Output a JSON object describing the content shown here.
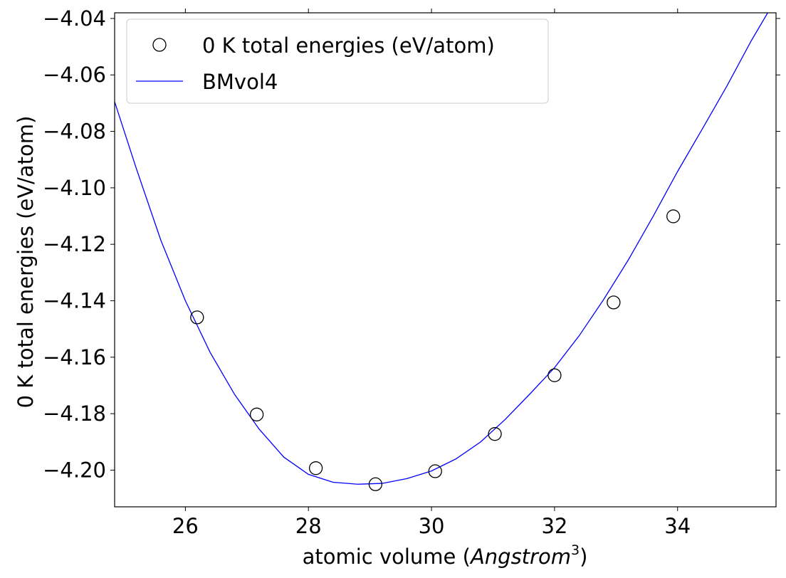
{
  "chart_data": {
    "type": "scatter",
    "xlabel_prefix": "atomic volume (",
    "xlabel_unit": "Angstrom",
    "xlabel_exp": "3",
    "xlabel_suffix": ")",
    "ylabel": "0 K total energies (eV/atom)",
    "xlim": [
      24.85,
      35.6
    ],
    "ylim": [
      -4.213,
      -4.038
    ],
    "xticks": [
      26,
      28,
      30,
      32,
      34
    ],
    "xtick_labels": [
      "26",
      "28",
      "30",
      "32",
      "34"
    ],
    "yticks": [
      -4.2,
      -4.18,
      -4.16,
      -4.14,
      -4.12,
      -4.1,
      -4.08,
      -4.06,
      -4.04
    ],
    "ytick_labels": [
      "−4.20",
      "−4.18",
      "−4.16",
      "−4.14",
      "−4.12",
      "−4.10",
      "−4.08",
      "−4.06",
      "−4.04"
    ],
    "grid": false,
    "legend_position": "top-left",
    "series": [
      {
        "name": "0 K total energies (eV/atom)",
        "kind": "markers",
        "color": "#000000",
        "marker": "open-circle",
        "x": [
          26.19,
          27.16,
          28.12,
          29.09,
          30.06,
          31.03,
          32.0,
          32.96,
          33.93
        ],
        "y": [
          -4.1459,
          -4.1803,
          -4.1993,
          -4.205,
          -4.2004,
          -4.1872,
          -4.1664,
          -4.1406,
          -4.1101
        ]
      },
      {
        "name": "BMvol4",
        "kind": "line",
        "color": "#0000ff",
        "x": [
          24.85,
          25.2,
          25.6,
          26.0,
          26.4,
          26.8,
          27.2,
          27.6,
          28.0,
          28.4,
          28.8,
          29.2,
          29.6,
          30.0,
          30.4,
          30.8,
          31.2,
          31.6,
          32.0,
          32.4,
          32.8,
          33.2,
          33.6,
          34.0,
          34.4,
          34.8,
          35.2,
          35.6
        ],
        "y": [
          -4.0695,
          -4.093,
          -4.1185,
          -4.14,
          -4.1582,
          -4.1732,
          -4.1855,
          -4.1954,
          -4.2015,
          -4.2043,
          -4.205,
          -4.2047,
          -4.203,
          -4.2003,
          -4.196,
          -4.19,
          -4.182,
          -4.173,
          -4.1637,
          -4.1524,
          -4.1395,
          -4.1255,
          -4.1102,
          -4.0942,
          -4.0792,
          -4.064,
          -4.0478,
          -4.033
        ]
      }
    ]
  }
}
